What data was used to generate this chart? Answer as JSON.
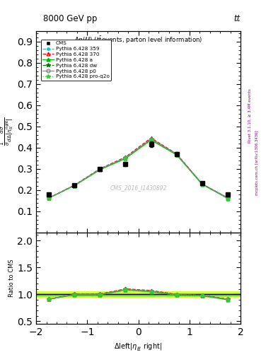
{
  "title_top": "8000 GeV pp",
  "title_right": "tt",
  "plot_title": "Δη(ℓℓ) (t̅̅events, parton level information)",
  "watermark": "CMS_2016_I1430892",
  "right_label1": "Rivet 3.1.10, ≥ 3.4M events",
  "right_label2": "mcplots.cern.ch [arXiv:1306.3436]",
  "x_centers": [
    -1.75,
    -1.25,
    -0.75,
    -0.25,
    0.25,
    0.75,
    1.25,
    1.75
  ],
  "cms_values": [
    0.178,
    0.222,
    0.298,
    0.322,
    0.415,
    0.37,
    0.232,
    0.178
  ],
  "cms_errors": [
    0.008,
    0.007,
    0.007,
    0.01,
    0.012,
    0.01,
    0.007,
    0.008
  ],
  "pythia359_values": [
    0.162,
    0.222,
    0.298,
    0.352,
    0.44,
    0.368,
    0.228,
    0.162
  ],
  "pythia370_values": [
    0.162,
    0.222,
    0.3,
    0.355,
    0.445,
    0.37,
    0.228,
    0.162
  ],
  "pythia_a_values": [
    0.162,
    0.22,
    0.295,
    0.348,
    0.435,
    0.365,
    0.226,
    0.16
  ],
  "pythia_dw_values": [
    0.162,
    0.222,
    0.298,
    0.352,
    0.44,
    0.368,
    0.228,
    0.162
  ],
  "pythia_p0_values": [
    0.162,
    0.222,
    0.298,
    0.352,
    0.44,
    0.368,
    0.228,
    0.162
  ],
  "pythia_proq2o_values": [
    0.162,
    0.22,
    0.295,
    0.348,
    0.435,
    0.365,
    0.226,
    0.16
  ],
  "ylim_main": [
    0.0,
    0.95
  ],
  "ylim_ratio": [
    0.45,
    2.15
  ],
  "yticks_main": [
    0.1,
    0.2,
    0.3,
    0.4,
    0.5,
    0.6,
    0.7,
    0.8,
    0.9
  ],
  "yticks_ratio": [
    0.5,
    1.0,
    1.5,
    2.0
  ],
  "xlim": [
    -2.0,
    2.0
  ],
  "xticks": [
    -2,
    -1,
    0,
    1,
    2
  ],
  "color_cms": "#000000",
  "color_359": "#00cccc",
  "color_370": "#ff0000",
  "color_a": "#00bb00",
  "color_dw": "#007700",
  "color_p0": "#888888",
  "color_proq2o": "#33cc33",
  "band_color": "#ccff00",
  "band_color2": "#00aa00",
  "band_alpha": 0.7
}
